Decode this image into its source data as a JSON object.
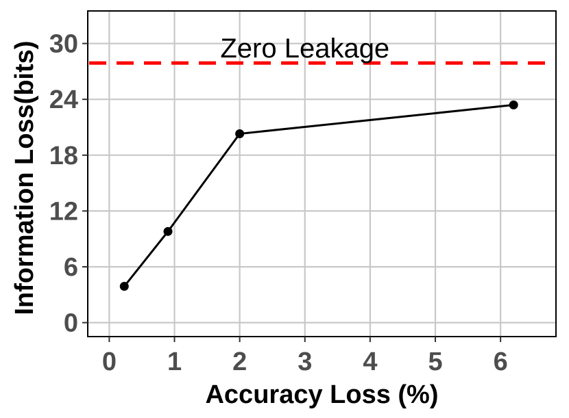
{
  "chart_data": {
    "type": "line",
    "xlabel": "Accuracy Loss (%)",
    "ylabel": "Information Loss(bits)",
    "xlim": [
      -0.33,
      6.85
    ],
    "ylim": [
      -1.5,
      33.5
    ],
    "xticks": [
      0,
      1,
      2,
      3,
      4,
      5,
      6
    ],
    "yticks": [
      0,
      6,
      12,
      18,
      24,
      30
    ],
    "grid": true,
    "series": [
      {
        "x": [
          0.23,
          0.9,
          2.0,
          6.2
        ],
        "y": [
          3.9,
          9.8,
          20.3,
          23.4
        ],
        "color": "#000000"
      }
    ],
    "reference_line": {
      "y": 27.9,
      "label": "Zero Leakage",
      "color": "#ff0000",
      "style": "dashed",
      "label_x": 3.0
    }
  }
}
